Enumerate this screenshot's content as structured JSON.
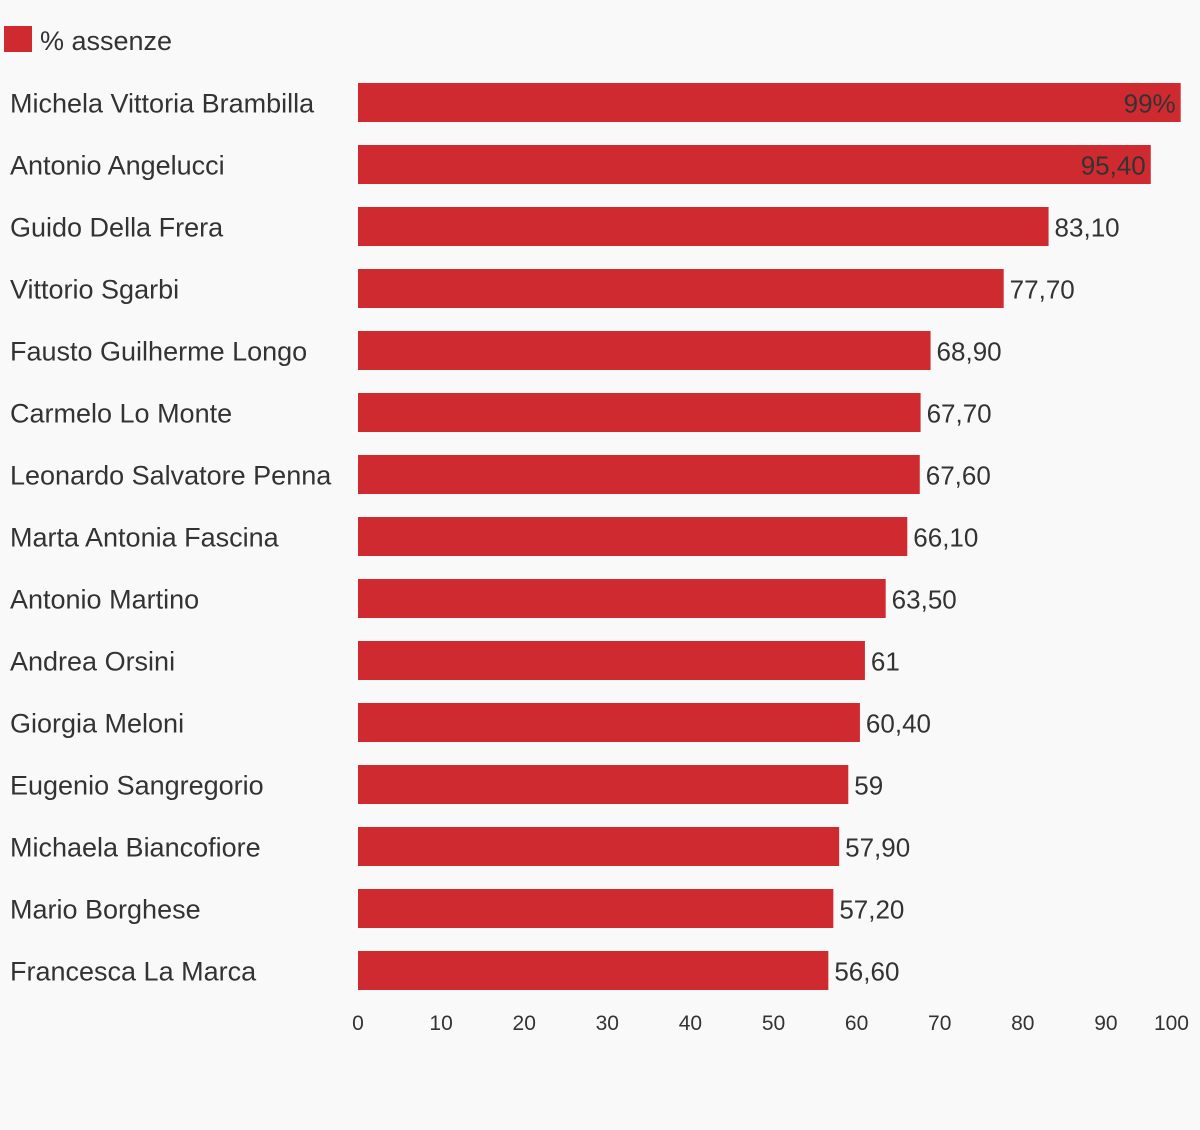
{
  "chart_data": {
    "type": "bar",
    "orientation": "horizontal",
    "categories": [
      "Michela Vittoria Brambilla",
      "Antonio Angelucci",
      "Guido Della Frera",
      "Vittorio Sgarbi",
      "Fausto Guilherme Longo",
      "Carmelo Lo Monte",
      "Leonardo Salvatore Penna",
      "Marta Antonia Fascina",
      "Antonio Martino",
      "Andrea Orsini",
      "Giorgia Meloni",
      "Eugenio Sangregorio",
      "Michaela Biancofiore",
      "Mario Borghese",
      "Francesca La Marca"
    ],
    "series": [
      {
        "name": "% assenze",
        "values": [
          99,
          95.4,
          83.1,
          77.7,
          68.9,
          67.7,
          67.6,
          66.1,
          63.5,
          61,
          60.4,
          59,
          57.9,
          57.2,
          56.6
        ],
        "labels": [
          "99%",
          "95,40",
          "83,10",
          "77,70",
          "68,90",
          "67,70",
          "67,60",
          "66,10",
          "63,50",
          "61",
          "60,40",
          "59",
          "57,90",
          "57,20",
          "56,60"
        ]
      }
    ],
    "xlim": [
      0,
      100
    ],
    "xticks": [
      "0",
      "10",
      "20",
      "30",
      "40",
      "50",
      "60",
      "70",
      "80",
      "90",
      "100"
    ],
    "legend_position": "top-left",
    "grid": false,
    "colors": {
      "bar": "#cf2a30",
      "text": "#333333",
      "background": "#f9f9f9"
    }
  }
}
